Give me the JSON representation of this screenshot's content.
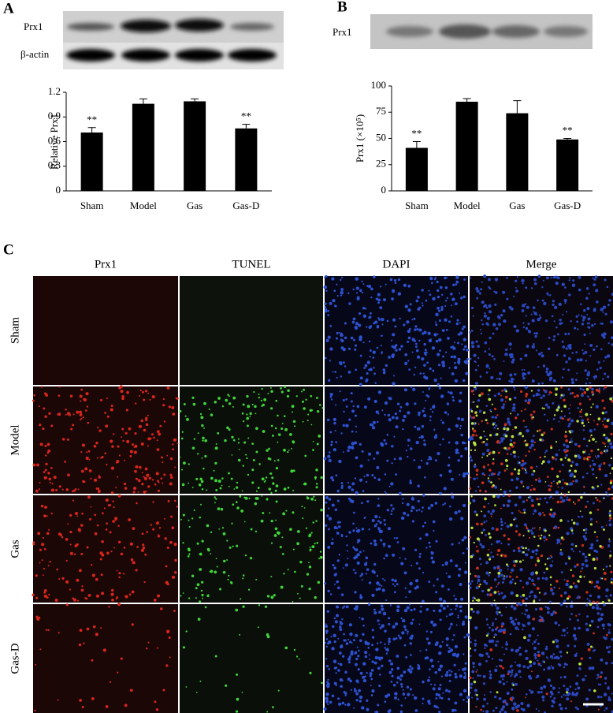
{
  "panel_labels": [
    "A",
    "B",
    "C"
  ],
  "blot_a": {
    "labels": [
      "Prx1",
      "β-actin"
    ]
  },
  "blot_b": {
    "labels": [
      "Prx1"
    ]
  },
  "chart_data": [
    {
      "type": "bar",
      "ylabel": "Relative Prx1",
      "categories": [
        "Sham",
        "Model",
        "Gas",
        "Gas-D"
      ],
      "values": [
        0.71,
        1.06,
        1.09,
        0.76
      ],
      "errors": [
        0.06,
        0.06,
        0.03,
        0.05
      ],
      "annotations": [
        "**",
        null,
        null,
        "**"
      ],
      "color": "#000000",
      "ylim": [
        0,
        1.2
      ],
      "yticks": [
        0,
        0.3,
        0.6,
        0.9,
        1.2
      ]
    },
    {
      "type": "bar",
      "ylabel": "Prx1 (×10⁵)",
      "categories": [
        "Sham",
        "Model",
        "Gas",
        "Gas-D"
      ],
      "values": [
        41,
        85,
        74,
        49
      ],
      "errors": [
        6,
        3,
        12,
        1
      ],
      "annotations": [
        "**",
        null,
        null,
        "**"
      ],
      "color": "#000000",
      "ylim": [
        0,
        100
      ],
      "yticks": [
        0,
        25,
        50,
        75,
        100
      ]
    }
  ],
  "microscopy": {
    "columns": [
      "Prx1",
      "TUNEL",
      "DAPI",
      "Merge"
    ],
    "rows": [
      "Sham",
      "Model",
      "Gas",
      "Gas-D"
    ]
  }
}
